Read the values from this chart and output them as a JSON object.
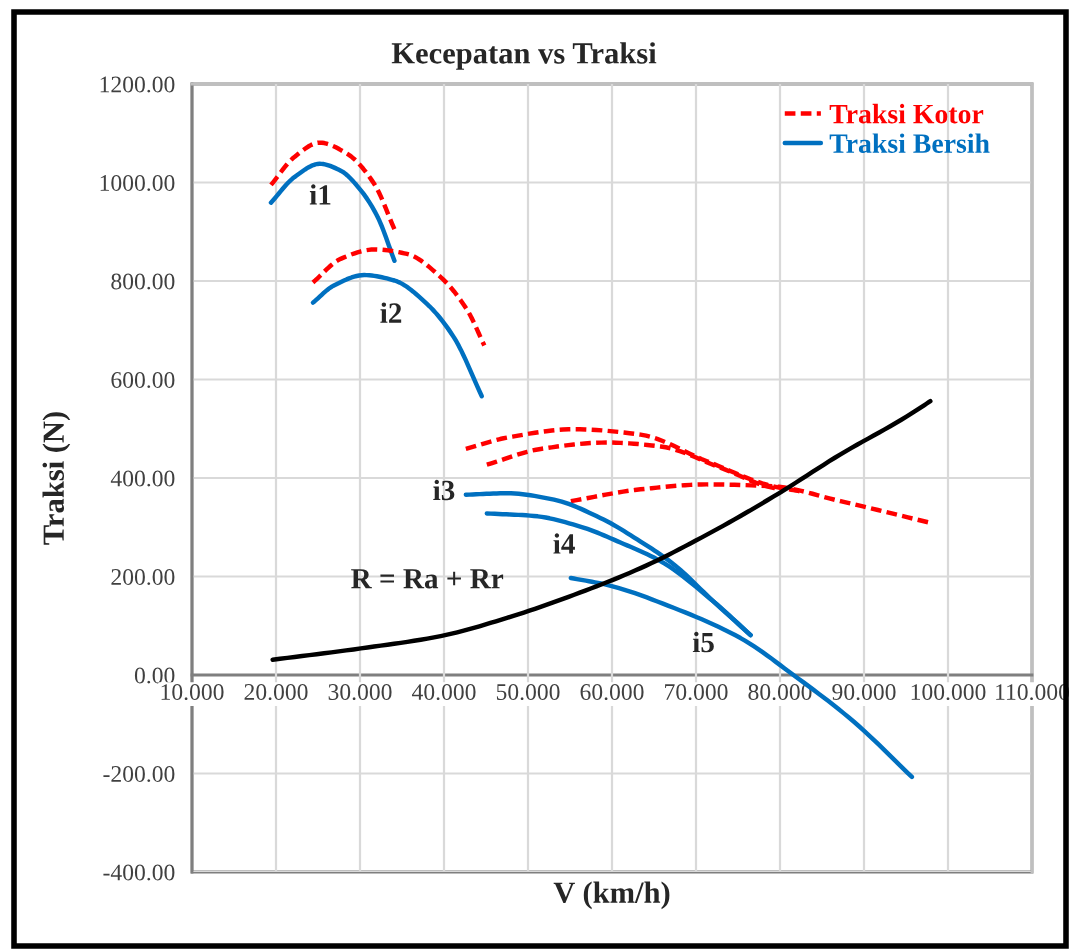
{
  "chart_data": {
    "type": "line",
    "title": "Kecepatan vs Traksi",
    "xlabel": "V (km/h)",
    "ylabel": "Traksi (N)",
    "xlim": [
      10,
      110
    ],
    "xticks": [
      {
        "value": 10,
        "label": "10.000"
      },
      {
        "value": 20,
        "label": "20.000"
      },
      {
        "value": 30,
        "label": "30.000"
      },
      {
        "value": 40,
        "label": "40.000"
      },
      {
        "value": 50,
        "label": "50.000"
      },
      {
        "value": 60,
        "label": "60.000"
      },
      {
        "value": 70,
        "label": "70.000"
      },
      {
        "value": 80,
        "label": "80.000"
      },
      {
        "value": 90,
        "label": "90.000"
      },
      {
        "value": 100,
        "label": "100.000"
      },
      {
        "value": 110,
        "label": "110.000"
      }
    ],
    "ylim": [
      -400,
      1200
    ],
    "yticks": [
      {
        "value": -400,
        "label": "-400.00"
      },
      {
        "value": -200,
        "label": "-200.00"
      },
      {
        "value": 0,
        "label": "0.00"
      },
      {
        "value": 200,
        "label": "200.00"
      },
      {
        "value": 400,
        "label": "400.00"
      },
      {
        "value": 600,
        "label": "600.00"
      },
      {
        "value": 800,
        "label": "800.00"
      },
      {
        "value": 1000,
        "label": "1000.00"
      },
      {
        "value": 1200,
        "label": "1200.00"
      }
    ],
    "grid": true,
    "legend": "top right",
    "series": [
      {
        "name": "Traksi Kotor",
        "color": "#ff0000",
        "line_style": "dashed",
        "x": [
          19.4,
          22.2,
          25.2,
          28.5,
          31.7,
          34.1
        ],
        "values": [
          995,
          1052,
          1081,
          1058,
          997,
          905
        ]
      },
      {
        "name": "Traksi Bersih",
        "color": "#0070c0",
        "line_style": "solid",
        "x": [
          19.4,
          22.2,
          25.2,
          27.7,
          30.1,
          32.1,
          34.1
        ],
        "values": [
          959,
          1011,
          1038,
          1024,
          984,
          930,
          841
        ]
      },
      {
        "color": "#ff0000",
        "line_style": "dashed",
        "x": [
          24.4,
          27.7,
          31.7,
          35.6,
          39.6,
          42.8,
          44.8
        ],
        "values": [
          797,
          845,
          864,
          855,
          808,
          740,
          669
        ]
      },
      {
        "color": "#0070c0",
        "line_style": "solid",
        "x": [
          24.4,
          26.9,
          30.5,
          34.1,
          38.0,
          41.2,
          44.5
        ],
        "values": [
          756,
          791,
          812,
          801,
          753,
          685,
          566
        ]
      },
      {
        "color": "#ff0000",
        "line_style": "dashed",
        "x": [
          42.6,
          47.5,
          55.5,
          63.4,
          71.3,
          79.2,
          82.4
        ],
        "values": [
          459,
          482,
          499,
          488,
          434,
          383,
          373
        ]
      },
      {
        "color": "#ff0000",
        "line_style": "dashed",
        "x": [
          45.1,
          51.5,
          59.4,
          65.8,
          72.9,
          79.2,
          80.5
        ],
        "values": [
          427,
          459,
          472,
          464,
          421,
          380,
          377
        ]
      },
      {
        "color": "#ff0000",
        "line_style": "dashed",
        "x": [
          55.1,
          63.4,
          71.3,
          79.2,
          87.2,
          97.9
        ],
        "values": [
          353,
          377,
          387,
          383,
          353,
          309
        ]
      },
      {
        "color": "#0070c0",
        "line_style": "solid",
        "x": [
          42.6,
          47.5,
          53.1,
          58.6,
          63.4,
          67.4,
          72.1,
          76.5
        ],
        "values": [
          366,
          369,
          356,
          319,
          271,
          224,
          149,
          81
        ]
      },
      {
        "color": "#0070c0",
        "line_style": "solid",
        "x": [
          45.1,
          50.7,
          56.3,
          61.0,
          65.8,
          72.1,
          76.5
        ],
        "values": [
          328,
          323,
          301,
          269,
          231,
          149,
          81
        ]
      },
      {
        "color": "#0070c0",
        "line_style": "solid",
        "x": [
          55.1,
          59.4,
          67.4,
          75.3,
          81.6,
          88.8,
          95.7
        ],
        "values": [
          197,
          183,
          136,
          75,
          0,
          -95,
          -207
        ]
      },
      {
        "color": "#000000",
        "line_style": "solid",
        "x": [
          19.6,
          30.1,
          39.6,
          47.5,
          55.5,
          63.4,
          71.3,
          79.2,
          87.2,
          95.1,
          97.9
        ],
        "values": [
          31,
          54,
          79,
          116,
          163,
          217,
          285,
          362,
          448,
          525,
          556
        ]
      }
    ],
    "annotations": [
      "i1",
      "i2",
      "i3",
      "i4",
      "i5",
      "R = Ra + Rr"
    ]
  }
}
